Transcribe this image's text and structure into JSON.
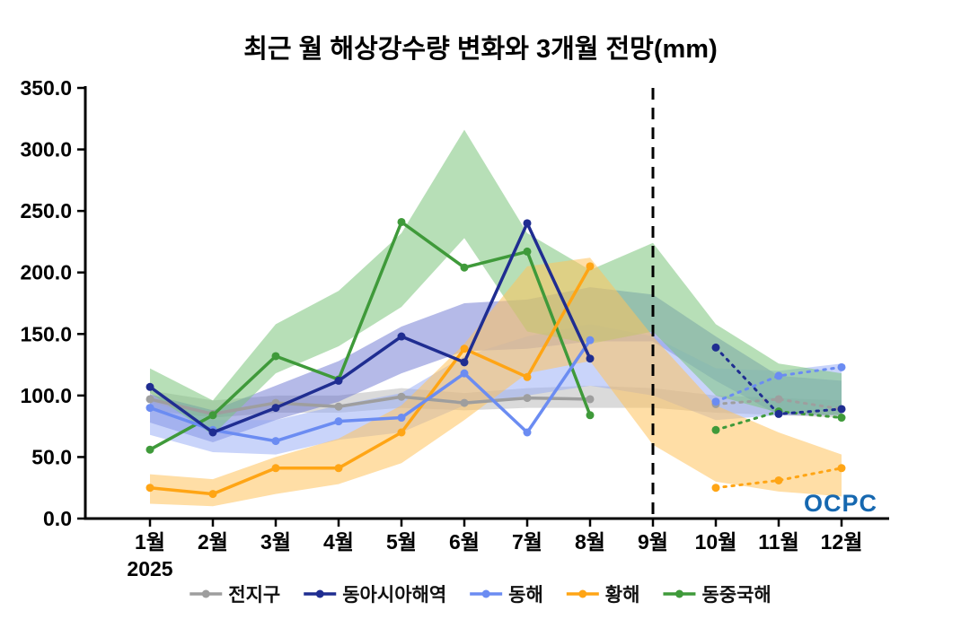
{
  "branding": {
    "logo_text": "OCPC"
  },
  "chart_data": {
    "type": "line",
    "title": "최근 월 해상강수량 변화와 3개월 전망(mm)",
    "x_labels": [
      "1월",
      "2월",
      "3월",
      "4월",
      "5월",
      "6월",
      "7월",
      "8월",
      "9월",
      "10월",
      "11월",
      "12월"
    ],
    "x_axis_year": "2025",
    "ylim": [
      0,
      350
    ],
    "ytick_step": 50,
    "y_tick_labels": [
      "0.0",
      "50.0",
      "100.0",
      "150.0",
      "200.0",
      "250.0",
      "300.0",
      "350.0"
    ],
    "grid": false,
    "legend_position": "bottom",
    "forecast_divider_month": 9,
    "forecast_style": "dotted",
    "band_draw_order": [
      "global",
      "east-asia-seas",
      "east-sea",
      "east-china-sea",
      "yellow-sea"
    ],
    "line_draw_order": [
      "global",
      "east-china-sea",
      "yellow-sea",
      "east-sea",
      "east-asia-seas"
    ],
    "series": [
      {
        "key": "global",
        "name": "전지구",
        "color": "#9e9e9e",
        "band_color": "#b5b5b5",
        "band_opacity": 0.5,
        "observed_months": [
          1,
          2,
          3,
          4,
          5,
          6,
          7,
          8
        ],
        "observed": [
          97,
          85,
          94,
          91,
          99,
          94,
          98,
          97
        ],
        "forecast_months": [
          10,
          11,
          12
        ],
        "forecast": [
          93,
          97,
          89
        ],
        "band_months": [
          1,
          2,
          3,
          4,
          5,
          6,
          7,
          8,
          9,
          10,
          11,
          12
        ],
        "band_lower": [
          88,
          82,
          86,
          86,
          90,
          88,
          90,
          90,
          90,
          86,
          84,
          82
        ],
        "band_upper": [
          104,
          96,
          100,
          100,
          106,
          102,
          106,
          108,
          106,
          100,
          98,
          96
        ]
      },
      {
        "key": "east-asia-seas",
        "name": "동아시아해역",
        "color": "#1f2d91",
        "band_color": "#5a66cc",
        "band_opacity": 0.45,
        "observed_months": [
          1,
          2,
          3,
          4,
          5,
          6,
          7,
          8
        ],
        "observed": [
          107,
          70,
          90,
          112,
          148,
          127,
          240,
          130
        ],
        "forecast_months": [
          10,
          11,
          12
        ],
        "forecast": [
          139,
          85,
          89
        ],
        "band_months": [
          1,
          2,
          3,
          4,
          5,
          6,
          7,
          8,
          9,
          10,
          11,
          12
        ],
        "band_lower": [
          78,
          62,
          80,
          95,
          118,
          136,
          138,
          144,
          144,
          112,
          84,
          84
        ],
        "band_upper": [
          101,
          88,
          108,
          128,
          156,
          175,
          178,
          188,
          182,
          148,
          116,
          112
        ]
      },
      {
        "key": "east-sea",
        "name": "동해",
        "color": "#6b8cf2",
        "band_color": "#93aaf6",
        "band_opacity": 0.5,
        "observed_months": [
          1,
          2,
          3,
          4,
          5,
          6,
          7,
          8
        ],
        "observed": [
          90,
          72,
          63,
          79,
          82,
          118,
          70,
          145
        ],
        "forecast_months": [
          10,
          11,
          12
        ],
        "forecast": [
          95,
          116,
          123
        ],
        "band_months": [
          1,
          2,
          3,
          4,
          5,
          6,
          7,
          8,
          9,
          10,
          11,
          12
        ],
        "band_lower": [
          68,
          54,
          52,
          64,
          70,
          92,
          100,
          108,
          100,
          80,
          84,
          90
        ],
        "band_upper": [
          95,
          80,
          80,
          92,
          102,
          132,
          148,
          158,
          148,
          122,
          120,
          126
        ]
      },
      {
        "key": "yellow-sea",
        "name": "황해",
        "color": "#ffa515",
        "band_color": "#ffc35c",
        "band_opacity": 0.55,
        "observed_months": [
          1,
          2,
          3,
          4,
          5,
          6,
          7,
          8
        ],
        "observed": [
          25,
          20,
          41,
          41,
          70,
          138,
          115,
          205
        ],
        "forecast_months": [
          10,
          11,
          12
        ],
        "forecast": [
          25,
          31,
          41
        ],
        "band_months": [
          1,
          2,
          3,
          4,
          5,
          6,
          7,
          8,
          9,
          10,
          11,
          12
        ],
        "band_lower": [
          12,
          10,
          20,
          28,
          45,
          80,
          118,
          128,
          60,
          30,
          22,
          18
        ],
        "band_upper": [
          36,
          32,
          50,
          65,
          92,
          142,
          205,
          212,
          148,
          92,
          70,
          52
        ]
      },
      {
        "key": "east-china-sea",
        "name": "동중국해",
        "color": "#3f9a3a",
        "band_color": "#7cc47c",
        "band_opacity": 0.55,
        "observed_months": [
          1,
          2,
          3,
          4,
          5,
          6,
          7,
          8
        ],
        "observed": [
          56,
          84,
          132,
          113,
          241,
          204,
          217,
          84
        ],
        "forecast_months": [
          10,
          11,
          12
        ],
        "forecast": [
          72,
          87,
          82
        ],
        "band_months": [
          1,
          2,
          3,
          4,
          5,
          6,
          7,
          8,
          9,
          10,
          11,
          12
        ],
        "band_lower": [
          102,
          68,
          118,
          140,
          172,
          228,
          152,
          142,
          152,
          100,
          86,
          84
        ],
        "band_upper": [
          122,
          96,
          158,
          185,
          232,
          316,
          232,
          202,
          224,
          158,
          126,
          118
        ]
      }
    ]
  }
}
